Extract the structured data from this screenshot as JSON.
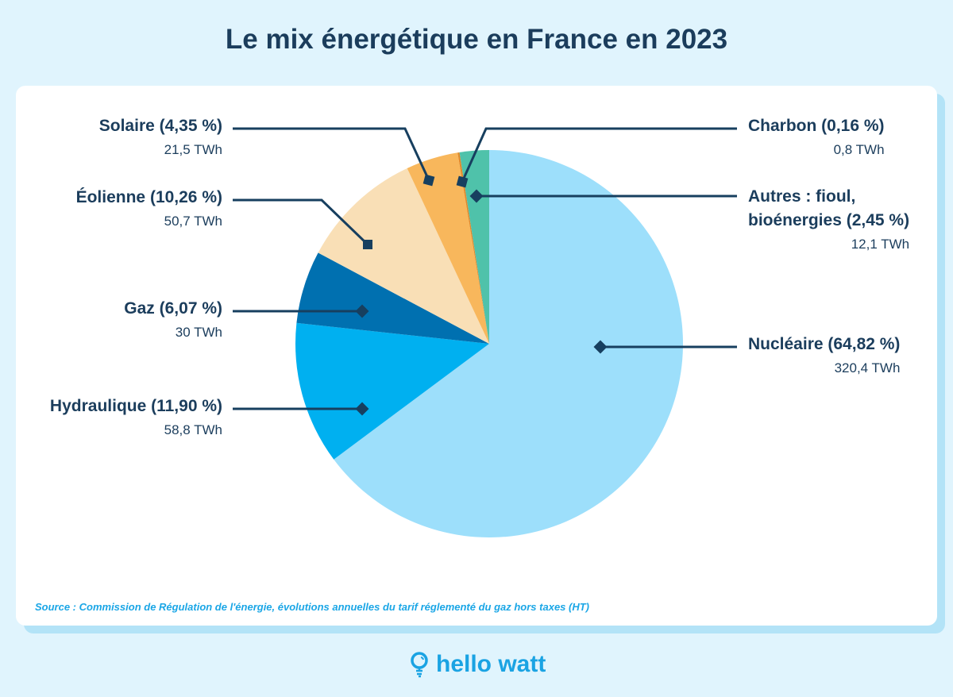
{
  "chart_data": {
    "type": "pie",
    "title": "Le mix énergétique en France en 2023",
    "start": "top",
    "direction": "clockwise",
    "slices": [
      {
        "label": "Nucléaire (64,82 %)",
        "value_text": "320,4 TWh",
        "percent": 64.82,
        "value": 320.4,
        "color": "#9ddffb"
      },
      {
        "label": "Hydraulique (11,90 %)",
        "value_text": "58,8 TWh",
        "percent": 11.9,
        "value": 58.8,
        "color": "#00b0f0"
      },
      {
        "label": "Gaz (6,07 %)",
        "value_text": "30 TWh",
        "percent": 6.07,
        "value": 30,
        "color": "#0070b0"
      },
      {
        "label": "Éolienne (10,26 %)",
        "value_text": "50,7 TWh",
        "percent": 10.26,
        "value": 50.7,
        "color": "#f9dfb6"
      },
      {
        "label": "Solaire (4,35 %)",
        "value_text": "21,5 TWh",
        "percent": 4.35,
        "value": 21.5,
        "color": "#f8b75c"
      },
      {
        "label": "Charbon (0,16 %)",
        "value_text": "0,8 TWh",
        "percent": 0.16,
        "value": 0.8,
        "color": "#e08a2c"
      },
      {
        "label_line1": "Autres : fioul,",
        "label_line2": "bioénergies (2,45 %)",
        "value_text": "12,1 TWh",
        "percent": 2.45,
        "value": 12.1,
        "color": "#4fc2aa"
      }
    ]
  },
  "source": "Source : Commission de Régulation de l'énergie, évolutions annuelles du tarif réglementé du gaz hors taxes (HT)",
  "logo": "hello watt",
  "colors": {
    "background": "#e0f4fd",
    "text": "#1b3d5c",
    "accent": "#1aa3e3"
  }
}
